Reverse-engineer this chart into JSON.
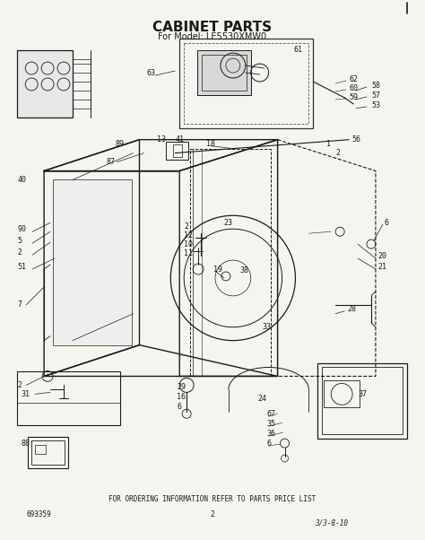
{
  "title": "CABINET PARTS",
  "subtitle": "For Model: LE5530XMW0",
  "footer_text": "FOR ORDERING INFORMATION REFER TO PARTS PRICE LIST",
  "bottom_left_num": "693359",
  "bottom_center_num": "2",
  "bottom_right_text": "3/3-8-10",
  "bg_color": "#f0f0f0",
  "line_color": "#1a1a1a",
  "title_fontsize": 11,
  "subtitle_fontsize": 7,
  "footer_fontsize": 5.5,
  "label_fontsize": 6.0,
  "figsize": [
    4.74,
    6.02
  ],
  "dpi": 100
}
